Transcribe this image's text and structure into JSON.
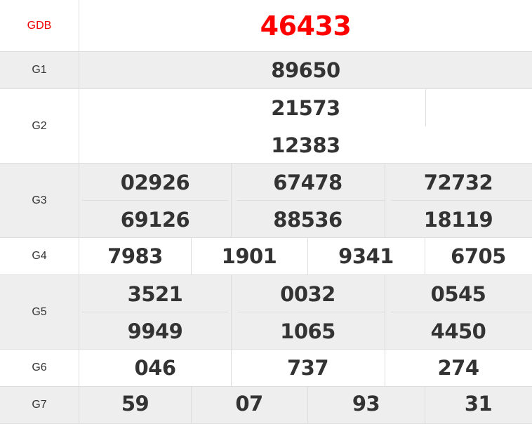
{
  "accent_color": "#ff0000",
  "prizes": [
    {
      "label": "GDB",
      "numbers": [
        "46433"
      ]
    },
    {
      "label": "G1",
      "numbers": [
        "89650"
      ]
    },
    {
      "label": "G2",
      "numbers": [
        "21573",
        "12383"
      ]
    },
    {
      "label": "G3",
      "numbers": [
        "02926",
        "67478",
        "72732",
        "69126",
        "88536",
        "18119"
      ]
    },
    {
      "label": "G4",
      "numbers": [
        "7983",
        "1901",
        "9341",
        "6705"
      ]
    },
    {
      "label": "G5",
      "numbers": [
        "3521",
        "0032",
        "0545",
        "9949",
        "1065",
        "4450"
      ]
    },
    {
      "label": "G6",
      "numbers": [
        "046",
        "737",
        "274"
      ]
    },
    {
      "label": "G7",
      "numbers": [
        "59",
        "07",
        "93",
        "31"
      ]
    }
  ]
}
